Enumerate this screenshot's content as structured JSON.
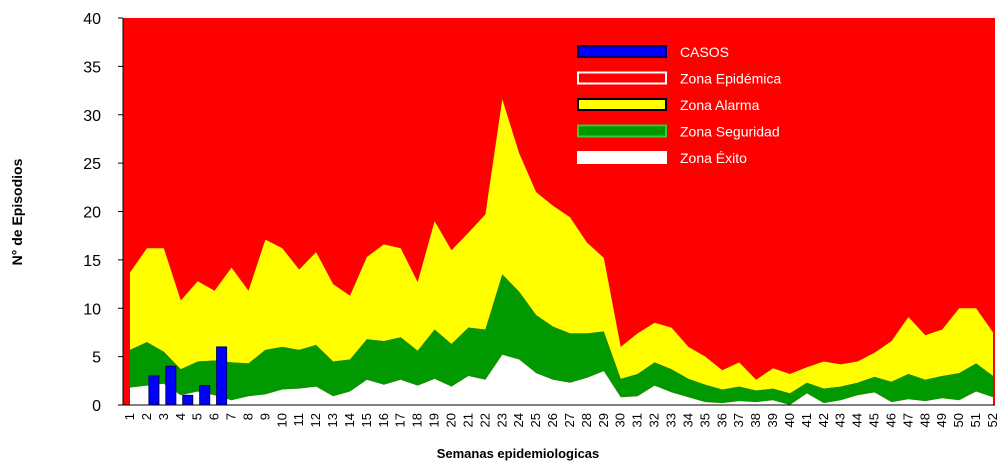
{
  "chart_data": {
    "type": "area",
    "ylabel": "N° de Episodios",
    "xlabel": "Semanas epidemiologicas",
    "categories": [
      "1",
      "2",
      "3",
      "4",
      "5",
      "6",
      "7",
      "8",
      "9",
      "10",
      "11",
      "12",
      "13",
      "14",
      "15",
      "16",
      "17",
      "18",
      "19",
      "20",
      "21",
      "22",
      "23",
      "24",
      "25",
      "26",
      "27",
      "28",
      "29",
      "30",
      "31",
      "32",
      "33",
      "34",
      "35",
      "36",
      "37",
      "38",
      "39",
      "40",
      "41",
      "42",
      "43",
      "44",
      "45",
      "46",
      "47",
      "48",
      "49",
      "50",
      "51",
      "52"
    ],
    "ylim": [
      0,
      40
    ],
    "yticks": [
      0,
      5,
      10,
      15,
      20,
      25,
      30,
      35,
      40
    ],
    "series": [
      {
        "name": "CASOS",
        "type": "bar",
        "color": "#0000ff",
        "values": [
          0,
          3,
          4,
          1,
          2,
          6,
          null,
          null,
          null,
          null,
          null,
          null,
          null,
          null,
          null,
          null,
          null,
          null,
          null,
          null,
          null,
          null,
          null,
          null,
          null,
          null,
          null,
          null,
          null,
          null,
          null,
          null,
          null,
          null,
          null,
          null,
          null,
          null,
          null,
          null,
          null,
          null,
          null,
          null,
          null,
          null,
          null,
          null,
          null,
          null,
          null,
          null
        ]
      },
      {
        "name": "Zona Epidémica",
        "color": "#ff0000"
      },
      {
        "name": "Zona Alarma",
        "color": "#ffff00",
        "values": [
          13.7,
          16.2,
          16.2,
          10.8,
          12.8,
          11.8,
          14.2,
          11.8,
          17.1,
          16.2,
          14.0,
          15.8,
          12.5,
          11.3,
          15.3,
          16.6,
          16.2,
          12.7,
          19.0,
          16.0,
          17.8,
          19.7,
          31.6,
          26.0,
          22.0,
          20.6,
          19.4,
          16.8,
          15.2,
          6.0,
          7.4,
          8.5,
          8.0,
          6.0,
          5.0,
          3.6,
          4.4,
          2.6,
          3.8,
          3.2,
          3.9,
          4.5,
          4.2,
          4.5,
          5.4,
          6.6,
          9.1,
          7.2,
          7.8,
          10.0,
          10.0,
          7.5
        ]
      },
      {
        "name": "Zona Seguridad",
        "color": "#009900",
        "values": [
          5.7,
          6.5,
          5.5,
          3.7,
          4.5,
          4.6,
          4.4,
          4.3,
          5.7,
          6.0,
          5.7,
          6.2,
          4.5,
          4.7,
          6.8,
          6.6,
          7.0,
          5.6,
          7.8,
          6.3,
          8.0,
          7.8,
          13.5,
          11.7,
          9.3,
          8.1,
          7.4,
          7.4,
          7.6,
          2.7,
          3.2,
          4.4,
          3.7,
          2.7,
          2.1,
          1.6,
          1.9,
          1.5,
          1.7,
          1.2,
          2.3,
          1.7,
          1.9,
          2.3,
          2.9,
          2.4,
          3.2,
          2.6,
          3.0,
          3.3,
          4.3,
          3.0
        ]
      },
      {
        "name": "Zona Éxito",
        "color": "#ffffff",
        "values": [
          1.8,
          2.0,
          2.2,
          1.0,
          1.4,
          1.0,
          0.5,
          0.9,
          1.1,
          1.6,
          1.7,
          1.9,
          0.9,
          1.4,
          2.6,
          2.1,
          2.6,
          2.0,
          2.7,
          1.9,
          3.0,
          2.6,
          5.2,
          4.7,
          3.3,
          2.6,
          2.3,
          2.8,
          3.5,
          0.8,
          0.9,
          2.0,
          1.3,
          0.8,
          0.3,
          0.2,
          0.4,
          0.3,
          0.5,
          0,
          1.2,
          0.2,
          0.5,
          1.0,
          1.3,
          0.3,
          0.6,
          0.4,
          0.7,
          0.5,
          1.4,
          0.8
        ]
      }
    ]
  }
}
